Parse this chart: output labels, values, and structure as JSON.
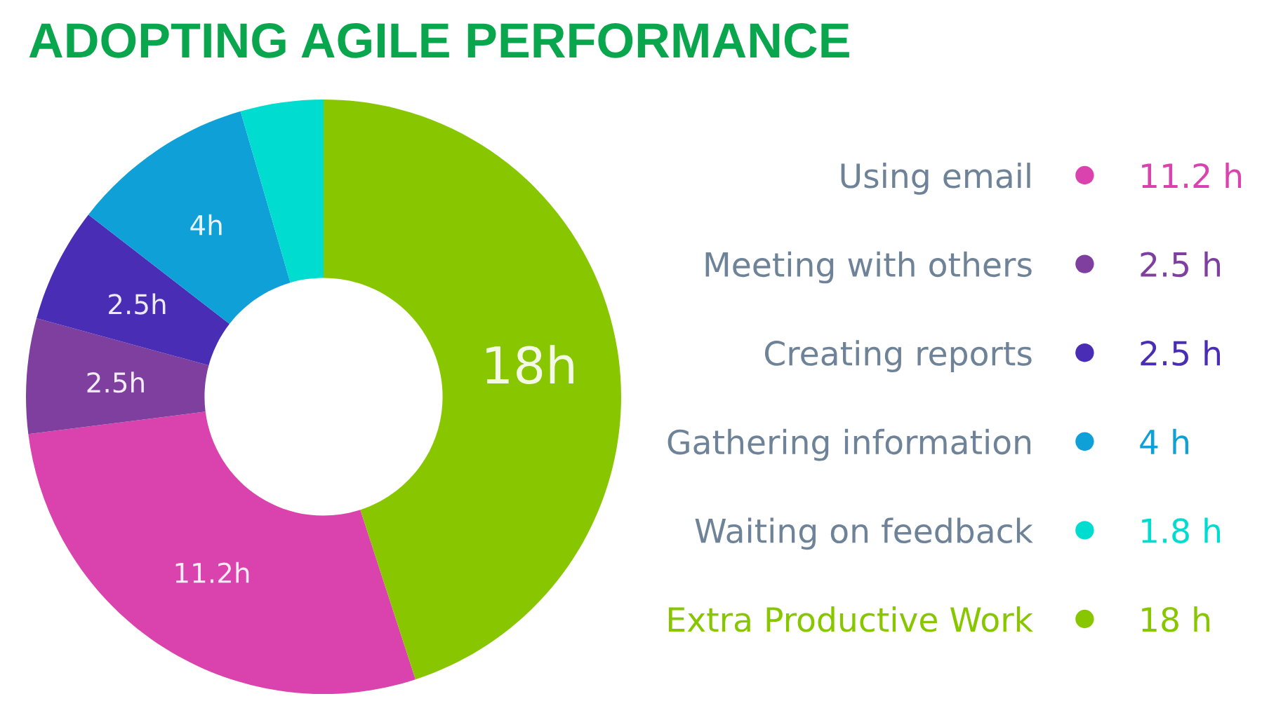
{
  "chart_data": {
    "type": "donut",
    "title": "ADOPTING AGILE PERFORMANCE",
    "categories": [
      "Using email",
      "Meeting with others",
      "Creating reports",
      "Gathering information",
      "Waiting on feedback",
      "Extra Productive Work"
    ],
    "values": [
      11.2,
      2.5,
      2.5,
      4,
      1.8,
      18
    ],
    "colors": [
      "#da42ae",
      "#7e3f9e",
      "#4a2db5",
      "#10a0d8",
      "#00dccf",
      "#88c700"
    ],
    "value_labels": [
      "11.2h",
      "2.5h",
      "2.5h",
      "4h",
      null,
      "18h"
    ],
    "annotations": [
      "11.2 h",
      "2.5 h",
      "2.5 h",
      "4 h",
      "1.8 h",
      "18 h"
    ],
    "legend": "right"
  }
}
